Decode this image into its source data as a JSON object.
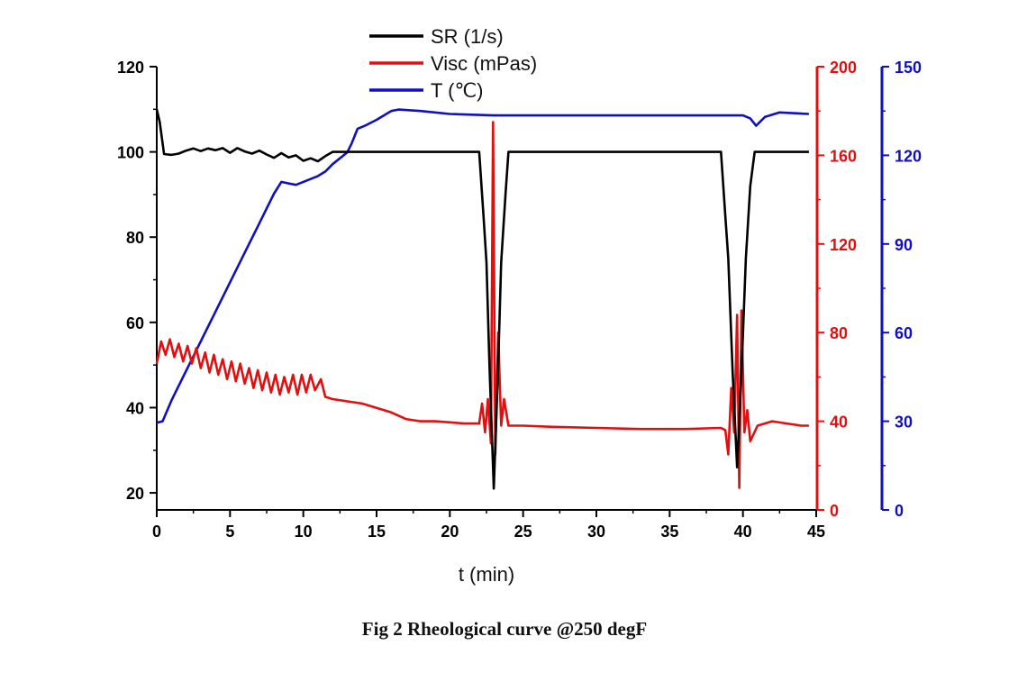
{
  "chart_data": {
    "type": "line",
    "caption": "Fig 2 Rheological curve @250 degF",
    "xlabel": "t (min)",
    "xlim": [
      0,
      45
    ],
    "x_ticks": [
      0,
      5,
      10,
      15,
      20,
      25,
      30,
      35,
      40,
      45
    ],
    "grid": false,
    "legend_position": "top-center",
    "axes": {
      "left": {
        "ylim": [
          16,
          120
        ],
        "ticks": [
          20,
          40,
          60,
          80,
          100,
          120
        ],
        "color": "#000000"
      },
      "right1": {
        "ylim": [
          0,
          200
        ],
        "ticks": [
          0,
          40,
          80,
          120,
          160,
          200
        ],
        "color": "#e01010"
      },
      "right2": {
        "ylim": [
          0,
          150
        ],
        "ticks": [
          0,
          30,
          60,
          90,
          120,
          150
        ],
        "color": "#1010c0"
      }
    },
    "series": [
      {
        "name": "SR (1/s)",
        "axis": "left",
        "color": "#000000",
        "points": [
          [
            0,
            110
          ],
          [
            0.2,
            107
          ],
          [
            0.5,
            99.5
          ],
          [
            1,
            99.3
          ],
          [
            1.5,
            99.6
          ],
          [
            2,
            100.3
          ],
          [
            2.5,
            100.8
          ],
          [
            3,
            100.2
          ],
          [
            3.5,
            100.8
          ],
          [
            4,
            100.4
          ],
          [
            4.5,
            100.9
          ],
          [
            5,
            99.8
          ],
          [
            5.5,
            100.9
          ],
          [
            6,
            100.1
          ],
          [
            6.5,
            99.6
          ],
          [
            7,
            100.3
          ],
          [
            7.5,
            99.4
          ],
          [
            8,
            98.6
          ],
          [
            8.5,
            99.7
          ],
          [
            9,
            98.7
          ],
          [
            9.5,
            99.2
          ],
          [
            10,
            97.9
          ],
          [
            10.5,
            98.5
          ],
          [
            11,
            97.8
          ],
          [
            11.5,
            99.0
          ],
          [
            12,
            100
          ],
          [
            22,
            100
          ],
          [
            22.3,
            85
          ],
          [
            22.5,
            74
          ],
          [
            22.7,
            50
          ],
          [
            23.0,
            21
          ],
          [
            23.3,
            50
          ],
          [
            23.5,
            74
          ],
          [
            23.8,
            90
          ],
          [
            24,
            100
          ],
          [
            38.5,
            100
          ],
          [
            38.8,
            85
          ],
          [
            39.0,
            75
          ],
          [
            39.3,
            48
          ],
          [
            39.6,
            26
          ],
          [
            39.9,
            48
          ],
          [
            40.2,
            75
          ],
          [
            40.5,
            92
          ],
          [
            40.8,
            100
          ],
          [
            44.5,
            100
          ]
        ]
      },
      {
        "name": "Visc (mPas)",
        "axis": "right1",
        "color": "#e01010",
        "points": [
          [
            0,
            66
          ],
          [
            0.3,
            76
          ],
          [
            0.6,
            70
          ],
          [
            0.9,
            77
          ],
          [
            1.2,
            69
          ],
          [
            1.5,
            75
          ],
          [
            1.8,
            67
          ],
          [
            2.1,
            74
          ],
          [
            2.4,
            66
          ],
          [
            2.7,
            73
          ],
          [
            3,
            64
          ],
          [
            3.3,
            71
          ],
          [
            3.6,
            62
          ],
          [
            3.9,
            70
          ],
          [
            4.2,
            61
          ],
          [
            4.5,
            68
          ],
          [
            4.8,
            59
          ],
          [
            5.1,
            67
          ],
          [
            5.4,
            58
          ],
          [
            5.7,
            66
          ],
          [
            6,
            57
          ],
          [
            6.3,
            64
          ],
          [
            6.6,
            55
          ],
          [
            6.9,
            63
          ],
          [
            7.2,
            54
          ],
          [
            7.5,
            62
          ],
          [
            7.8,
            53
          ],
          [
            8.1,
            61
          ],
          [
            8.4,
            52
          ],
          [
            8.7,
            60
          ],
          [
            9,
            53
          ],
          [
            9.3,
            61
          ],
          [
            9.6,
            52
          ],
          [
            9.9,
            61
          ],
          [
            10.2,
            53
          ],
          [
            10.5,
            61
          ],
          [
            10.8,
            54
          ],
          [
            11.2,
            59
          ],
          [
            11.5,
            51
          ],
          [
            12,
            50
          ],
          [
            13,
            49
          ],
          [
            14,
            48
          ],
          [
            15,
            46
          ],
          [
            16,
            44
          ],
          [
            17,
            41
          ],
          [
            18,
            40
          ],
          [
            19,
            40
          ],
          [
            20,
            39.5
          ],
          [
            21,
            39
          ],
          [
            22,
            39
          ],
          [
            22.2,
            48
          ],
          [
            22.4,
            35
          ],
          [
            22.6,
            50
          ],
          [
            22.8,
            30
          ],
          [
            22.95,
            175
          ],
          [
            23.1,
            25
          ],
          [
            23.3,
            80
          ],
          [
            23.5,
            38
          ],
          [
            23.7,
            50
          ],
          [
            24,
            38
          ],
          [
            25,
            38
          ],
          [
            27,
            37.5
          ],
          [
            30,
            37
          ],
          [
            33,
            36.5
          ],
          [
            36,
            36.5
          ],
          [
            38.5,
            37
          ],
          [
            38.8,
            36
          ],
          [
            39,
            25
          ],
          [
            39.2,
            55
          ],
          [
            39.4,
            35
          ],
          [
            39.6,
            88
          ],
          [
            39.75,
            10
          ],
          [
            39.9,
            90
          ],
          [
            40.1,
            35
          ],
          [
            40.3,
            45
          ],
          [
            40.5,
            31
          ],
          [
            41,
            38
          ],
          [
            42,
            40
          ],
          [
            43,
            39
          ],
          [
            44,
            38
          ],
          [
            44.5,
            38
          ]
        ]
      },
      {
        "name": "T (℃)",
        "axis": "right2",
        "color": "#1010c0",
        "points": [
          [
            0,
            29.5
          ],
          [
            0.4,
            30
          ],
          [
            1,
            37
          ],
          [
            2,
            47
          ],
          [
            3,
            57
          ],
          [
            4,
            67
          ],
          [
            5,
            77
          ],
          [
            6,
            87
          ],
          [
            7,
            97
          ],
          [
            8,
            107
          ],
          [
            8.5,
            111
          ],
          [
            9,
            110.5
          ],
          [
            9.5,
            110
          ],
          [
            10,
            111
          ],
          [
            11,
            113
          ],
          [
            11.5,
            114.5
          ],
          [
            12,
            117
          ],
          [
            12.5,
            119
          ],
          [
            13,
            121
          ],
          [
            13.3,
            124
          ],
          [
            13.7,
            129
          ],
          [
            14.2,
            130
          ],
          [
            15,
            132
          ],
          [
            15.5,
            133.5
          ],
          [
            16,
            135
          ],
          [
            16.5,
            135.5
          ],
          [
            18,
            135
          ],
          [
            20,
            134
          ],
          [
            23,
            133.5
          ],
          [
            25,
            133.5
          ],
          [
            30,
            133.5
          ],
          [
            35,
            133.5
          ],
          [
            40,
            133.5
          ],
          [
            40.5,
            132.5
          ],
          [
            40.9,
            130
          ],
          [
            41.5,
            133
          ],
          [
            42.5,
            134.5
          ],
          [
            44.5,
            134
          ]
        ]
      }
    ]
  }
}
